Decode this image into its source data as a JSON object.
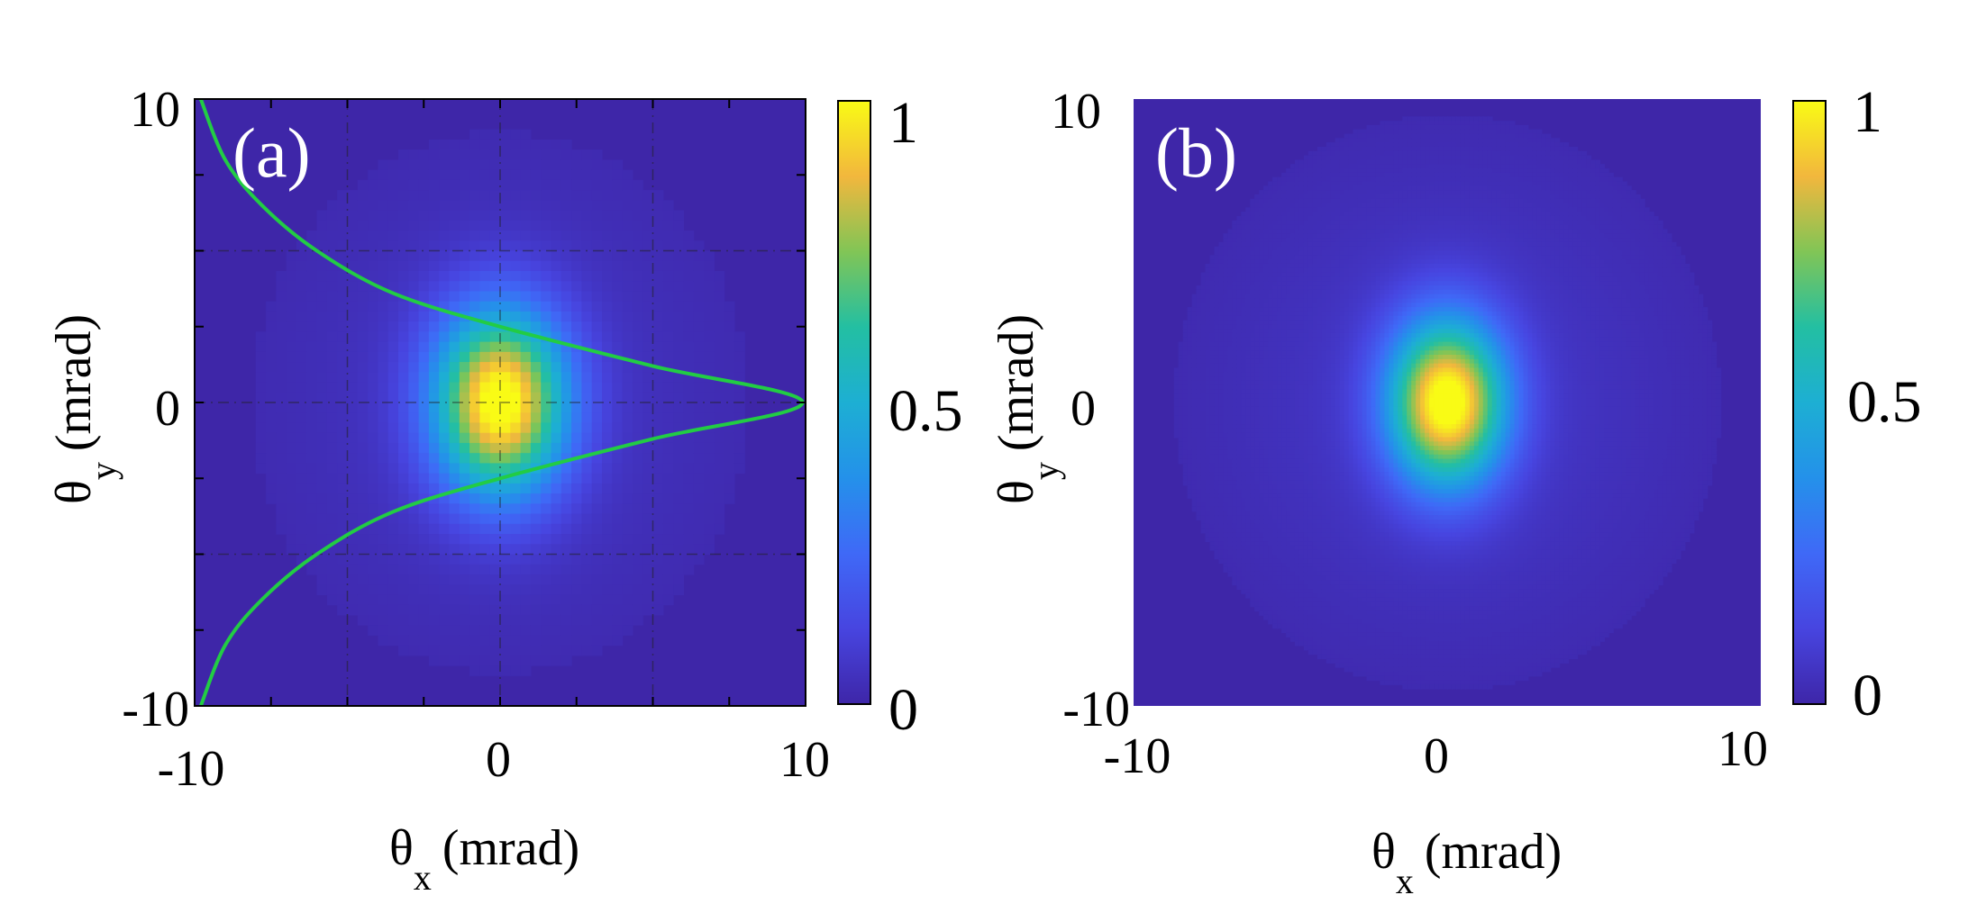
{
  "chart_data": [
    {
      "type": "heatmap",
      "panel_label": "(a)",
      "xlabel": {
        "symbol": "θ",
        "subscript": "x",
        "unit": "(mrad)"
      },
      "ylabel": {
        "symbol": "θ",
        "subscript": "y",
        "unit": "(mrad)"
      },
      "xlim": [
        -10,
        10
      ],
      "ylim": [
        -10,
        10
      ],
      "xticks": [
        -10,
        0,
        10
      ],
      "yticks": [
        -10,
        0,
        10
      ],
      "xtick_labels": [
        "-10",
        "0",
        "10"
      ],
      "ytick_labels": [
        "-10",
        "0",
        "10"
      ],
      "colorbar": {
        "ticks": [
          0,
          0.5,
          1
        ],
        "tick_labels": [
          "0",
          "0.5",
          "1"
        ],
        "colormap": "parula"
      },
      "grid": "dash-dot",
      "pixelated": true,
      "intensity_model": {
        "peak_x": 0,
        "peak_y": 0,
        "sigma_x": 1.5,
        "sigma_y": 2.1,
        "halo_amplitude": 0.06,
        "halo_sigma_x": 5.5,
        "halo_sigma_y": 6.0
      },
      "overlay_profile": {
        "color": "#22cc44",
        "description_points_x": [
          -9.8,
          -9.0,
          -7.8,
          -6.0,
          -3.5,
          0.0,
          5.0,
          9.9,
          5.0,
          0.0,
          -3.5,
          -6.0,
          -7.8,
          -9.0,
          -9.8
        ],
        "description_points_y": [
          10,
          8,
          6.5,
          5.0,
          3.6,
          2.5,
          1.2,
          0,
          -1.2,
          -2.5,
          -3.6,
          -5.0,
          -6.5,
          -8,
          -10
        ]
      }
    },
    {
      "type": "heatmap",
      "panel_label": "(b)",
      "xlabel": {
        "symbol": "θ",
        "subscript": "x",
        "unit": "(mrad)"
      },
      "ylabel": {
        "symbol": "θ",
        "subscript": "y",
        "unit": "(mrad)"
      },
      "xlim": [
        -10,
        10
      ],
      "ylim": [
        -10,
        10
      ],
      "xticks": [
        -10,
        0,
        10
      ],
      "yticks": [
        -10,
        0,
        10
      ],
      "xtick_labels": [
        "-10",
        "0",
        "10"
      ],
      "ytick_labels": [
        "-10",
        "0",
        "10"
      ],
      "colorbar": {
        "ticks": [
          0,
          0.5,
          1
        ],
        "tick_labels": [
          "0",
          "0.5",
          "1"
        ],
        "colormap": "parula"
      },
      "grid": "off",
      "pixelated": false,
      "intensity_model": {
        "peak_x": 0,
        "peak_y": 0,
        "sigma_x": 1.3,
        "sigma_y": 1.9,
        "halo_amplitude": 0.07,
        "halo_sigma_x": 5.5,
        "halo_sigma_y": 6.0
      }
    }
  ]
}
